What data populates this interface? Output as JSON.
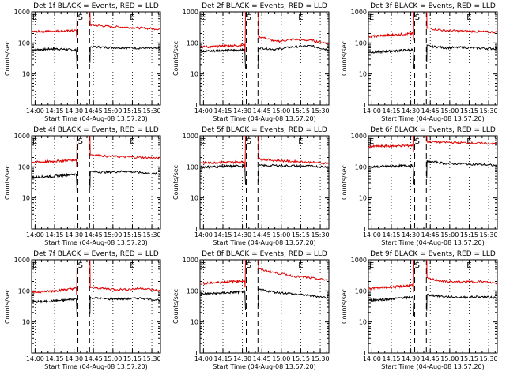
{
  "colors": {
    "events": "#000000",
    "lld": "#e00000",
    "frame": "#000000",
    "background": "#ffffff"
  },
  "layout_words": {
    "grid": "3x3",
    "y_scale": "log",
    "vertical_markers": "dotted every 15 min, dashed at passage boundaries"
  },
  "chart_data": [
    {
      "type": "line",
      "title": "Det 1f BLACK = Events, RED = LLD",
      "ylabel": "Counts/sec",
      "xlabel": "Start Time (04-Aug-08 13:57:20)",
      "xticks": [
        "14:00",
        "14:15",
        "14:30",
        "14:45",
        "15:00",
        "15:15",
        "15:30"
      ],
      "yticks": [
        "1",
        "10",
        "100",
        "1000"
      ],
      "ylim": [
        1,
        1000
      ],
      "xlim": [
        "13:57:20",
        "15:36:40"
      ],
      "marks": [
        "E",
        "S",
        "E"
      ],
      "series": [
        {
          "name": "Events",
          "color": "#000000",
          "values_before": [
            60,
            62,
            65,
            62,
            58
          ],
          "values_after": [
            75,
            72,
            70,
            68,
            65
          ]
        },
        {
          "name": "LLD",
          "color": "#e00000",
          "values_before": [
            230,
            235,
            240,
            240,
            250
          ],
          "values_after": [
            380,
            340,
            320,
            300,
            280
          ]
        }
      ]
    },
    {
      "type": "line",
      "title": "Det 2f BLACK = Events, RED = LLD",
      "ylabel": "Counts/sec",
      "xlabel": "Start Time (04-Aug-08 13:57:20)",
      "xticks": [
        "14:00",
        "14:15",
        "14:30",
        "14:45",
        "15:00",
        "15:15",
        "15:30"
      ],
      "yticks": [
        "1",
        "10",
        "100",
        "1000"
      ],
      "ylim": [
        1,
        1000
      ],
      "xlim": [
        "13:57:20",
        "15:36:40"
      ],
      "marks": [
        "E",
        "S",
        "E"
      ],
      "series": [
        {
          "name": "Events",
          "color": "#000000",
          "values_before": [
            55,
            55,
            58,
            58,
            60
          ],
          "values_after": [
            70,
            62,
            75,
            80,
            60
          ]
        },
        {
          "name": "LLD",
          "color": "#e00000",
          "values_before": [
            75,
            75,
            80,
            82,
            85
          ],
          "values_after": [
            160,
            110,
            130,
            120,
            95
          ]
        }
      ]
    },
    {
      "type": "line",
      "title": "Det 3f BLACK = Events, RED = LLD",
      "ylabel": "Counts/sec",
      "xlabel": "Start Time (04-Aug-08 13:57:20)",
      "xticks": [
        "14:00",
        "14:15",
        "14:30",
        "14:45",
        "15:00",
        "15:15",
        "15:30"
      ],
      "yticks": [
        "1",
        "10",
        "100",
        "1000"
      ],
      "ylim": [
        1,
        1000
      ],
      "xlim": [
        "13:57:20",
        "15:36:40"
      ],
      "marks": [
        "E",
        "S",
        "E"
      ],
      "series": [
        {
          "name": "Events",
          "color": "#000000",
          "values_before": [
            50,
            52,
            55,
            58,
            60
          ],
          "values_after": [
            80,
            70,
            72,
            68,
            65
          ]
        },
        {
          "name": "LLD",
          "color": "#e00000",
          "values_before": [
            160,
            170,
            180,
            190,
            200
          ],
          "values_after": [
            300,
            250,
            240,
            230,
            220
          ]
        }
      ]
    },
    {
      "type": "line",
      "title": "Det 4f BLACK = Events, RED = LLD",
      "ylabel": "Counts/sec",
      "xlabel": "Start Time (04-Aug-08 13:57:20)",
      "xticks": [
        "14:00",
        "14:15",
        "14:30",
        "14:45",
        "15:00",
        "15:15",
        "15:30"
      ],
      "yticks": [
        "1",
        "10",
        "100",
        "1000"
      ],
      "ylim": [
        1,
        1000
      ],
      "xlim": [
        "13:57:20",
        "15:36:40"
      ],
      "marks": [
        "E",
        "S",
        "E"
      ],
      "series": [
        {
          "name": "Events",
          "color": "#000000",
          "values_before": [
            45,
            48,
            50,
            55,
            58
          ],
          "values_after": [
            70,
            68,
            72,
            65,
            58
          ]
        },
        {
          "name": "LLD",
          "color": "#e00000",
          "values_before": [
            140,
            145,
            150,
            160,
            170
          ],
          "values_after": [
            250,
            220,
            210,
            200,
            190
          ]
        }
      ]
    },
    {
      "type": "line",
      "title": "Det 5f BLACK = Events, RED = LLD",
      "ylabel": "Counts/sec",
      "xlabel": "Start Time (04-Aug-08 13:57:20)",
      "xticks": [
        "14:00",
        "14:15",
        "14:30",
        "14:45",
        "15:00",
        "15:15",
        "15:30"
      ],
      "yticks": [
        "1",
        "10",
        "100",
        "1000"
      ],
      "ylim": [
        1,
        1000
      ],
      "xlim": [
        "13:57:20",
        "15:36:40"
      ],
      "marks": [
        "E",
        "S",
        "E"
      ],
      "series": [
        {
          "name": "Events",
          "color": "#000000",
          "values_before": [
            100,
            100,
            105,
            105,
            108
          ],
          "values_after": [
            110,
            110,
            108,
            105,
            100
          ]
        },
        {
          "name": "LLD",
          "color": "#e00000",
          "values_before": [
            135,
            135,
            140,
            140,
            145
          ],
          "values_after": [
            180,
            160,
            150,
            140,
            130
          ]
        }
      ]
    },
    {
      "type": "line",
      "title": "Det 6f BLACK = Events, RED = LLD",
      "ylabel": "Counts/sec",
      "xlabel": "Start Time (04-Aug-08 13:57:20)",
      "xticks": [
        "14:00",
        "14:15",
        "14:30",
        "14:45",
        "15:00",
        "15:15",
        "15:30"
      ],
      "yticks": [
        "1",
        "10",
        "100",
        "1000"
      ],
      "ylim": [
        1,
        1000
      ],
      "xlim": [
        "13:57:20",
        "15:36:40"
      ],
      "marks": [
        "E",
        "S",
        "E"
      ],
      "series": [
        {
          "name": "Events",
          "color": "#000000",
          "values_before": [
            100,
            102,
            105,
            108,
            110
          ],
          "values_after": [
            150,
            130,
            125,
            120,
            110
          ]
        },
        {
          "name": "LLD",
          "color": "#e00000",
          "values_before": [
            450,
            460,
            470,
            480,
            490
          ],
          "values_after": [
            650,
            620,
            600,
            580,
            560
          ]
        }
      ]
    },
    {
      "type": "line",
      "title": "Det 7f BLACK = Events, RED = LLD",
      "ylabel": "Counts/sec",
      "xlabel": "Start Time (04-Aug-08 13:57:20)",
      "xticks": [
        "14:00",
        "14:15",
        "14:30",
        "14:45",
        "15:00",
        "15:15",
        "15:30"
      ],
      "yticks": [
        "1",
        "10",
        "100",
        "1000"
      ],
      "ylim": [
        1,
        1000
      ],
      "xlim": [
        "13:57:20",
        "15:36:40"
      ],
      "marks": [
        "E",
        "S",
        "E"
      ],
      "series": [
        {
          "name": "Events",
          "color": "#000000",
          "values_before": [
            45,
            45,
            48,
            50,
            55
          ],
          "values_after": [
            60,
            55,
            55,
            58,
            50
          ]
        },
        {
          "name": "LLD",
          "color": "#e00000",
          "values_before": [
            90,
            95,
            100,
            110,
            120
          ],
          "values_after": [
            130,
            115,
            110,
            120,
            100
          ]
        }
      ]
    },
    {
      "type": "line",
      "title": "Det 8f BLACK = Events, RED = LLD",
      "ylabel": "Counts/sec",
      "xlabel": "Start Time (04-Aug-08 13:57:20)",
      "xticks": [
        "14:00",
        "14:15",
        "14:30",
        "14:45",
        "15:00",
        "15:15",
        "15:30"
      ],
      "yticks": [
        "1",
        "10",
        "100",
        "1000"
      ],
      "ylim": [
        1,
        1000
      ],
      "xlim": [
        "13:57:20",
        "15:36:40"
      ],
      "marks": [
        "E",
        "S",
        "E"
      ],
      "series": [
        {
          "name": "Events",
          "color": "#000000",
          "values_before": [
            80,
            82,
            85,
            90,
            95
          ],
          "values_after": [
            110,
            90,
            80,
            70,
            60
          ]
        },
        {
          "name": "LLD",
          "color": "#e00000",
          "values_before": [
            170,
            180,
            190,
            200,
            210
          ],
          "values_after": [
            500,
            380,
            300,
            260,
            220
          ]
        }
      ]
    },
    {
      "type": "line",
      "title": "Det 9f BLACK = Events, RED = LLD",
      "ylabel": "Counts/sec",
      "xlabel": "Start Time (04-Aug-08 13:57:20)",
      "xticks": [
        "14:00",
        "14:15",
        "14:30",
        "14:45",
        "15:00",
        "15:15",
        "15:30"
      ],
      "yticks": [
        "1",
        "10",
        "100",
        "1000"
      ],
      "ylim": [
        1,
        1000
      ],
      "xlim": [
        "13:57:20",
        "15:36:40"
      ],
      "marks": [
        "E",
        "S",
        "E"
      ],
      "series": [
        {
          "name": "Events",
          "color": "#000000",
          "values_before": [
            50,
            52,
            55,
            60,
            62
          ],
          "values_after": [
            75,
            65,
            62,
            65,
            60
          ]
        },
        {
          "name": "LLD",
          "color": "#e00000",
          "values_before": [
            120,
            125,
            130,
            140,
            150
          ],
          "values_after": [
            250,
            200,
            190,
            200,
            175
          ]
        }
      ]
    }
  ]
}
